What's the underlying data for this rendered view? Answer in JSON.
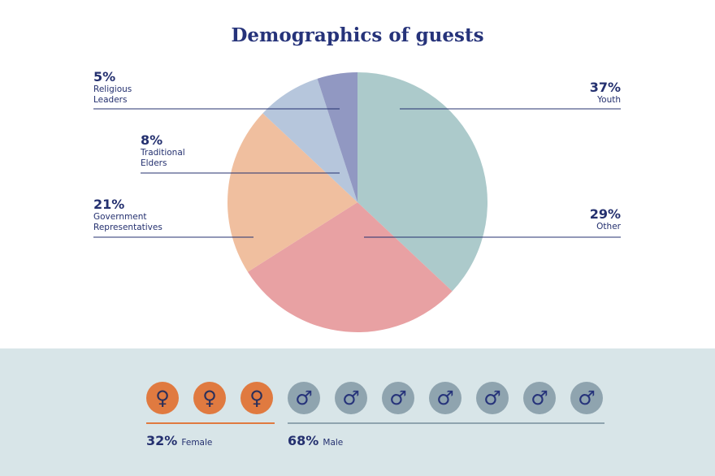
{
  "chart_data": [
    {
      "type": "pie",
      "title": "Demographics of guests",
      "slices": [
        {
          "label": "Youth",
          "value": 37,
          "pct_text": "37%",
          "color": "#accacb"
        },
        {
          "label": "Other",
          "value": 29,
          "pct_text": "29%",
          "color": "#e8a1a3"
        },
        {
          "label": "Government\nRepresentatives",
          "value": 21,
          "pct_text": "21%",
          "color": "#f0bf9f"
        },
        {
          "label": "Traditional\nElders",
          "value": 8,
          "pct_text": "8%",
          "color": "#b6c6dc"
        },
        {
          "label": "Religious\nLeaders",
          "value": 5,
          "pct_text": "5%",
          "color": "#9198c2"
        }
      ]
    },
    {
      "type": "bar",
      "title": "",
      "series": [
        {
          "name": "Female",
          "value": 32,
          "pct_text": "32%",
          "icon": "female-icon",
          "icon_count": 3,
          "color": "#e07a40"
        },
        {
          "name": "Male",
          "value": 68,
          "pct_text": "68%",
          "icon": "male-icon",
          "icon_count": 7,
          "color": "#8fa4af"
        }
      ]
    }
  ],
  "colors": {
    "title": "#26337a",
    "text": "#24306f",
    "leader_line": "#24306f",
    "band": "#d8e5e8",
    "female_line": "#e07a40",
    "male_line": "#8fa4af"
  }
}
